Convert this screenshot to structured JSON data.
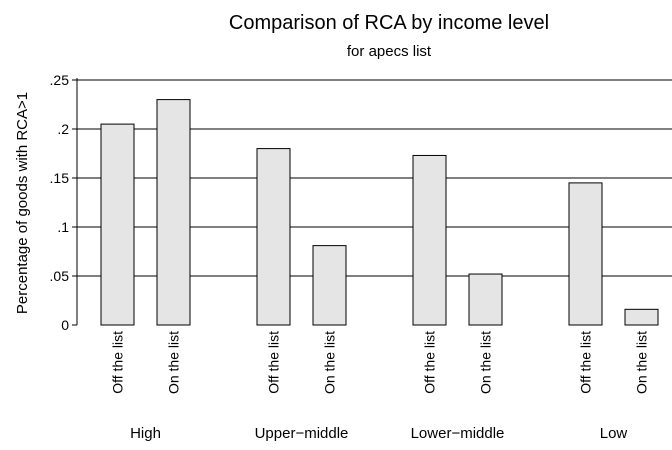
{
  "chart_data": {
    "type": "bar",
    "title": "Comparison of RCA by income level",
    "subtitle": "for apecs list",
    "ylabel": "Percentage of goods with RCA>1",
    "xlabel": "",
    "ylim": [
      0,
      0.25
    ],
    "yticks": [
      0,
      0.05,
      0.1,
      0.15,
      0.2,
      0.25
    ],
    "ytick_labels": [
      "0",
      ".05",
      ".1",
      ".15",
      ".2",
      ".25"
    ],
    "grid": "horizontal",
    "groups": [
      {
        "name": "High",
        "bars": [
          {
            "label": "Off the list",
            "value": 0.205
          },
          {
            "label": "On the list",
            "value": 0.23
          }
        ]
      },
      {
        "name": "Upper−middle",
        "bars": [
          {
            "label": "Off the list",
            "value": 0.18
          },
          {
            "label": "On the list",
            "value": 0.081
          }
        ]
      },
      {
        "name": "Lower−middle",
        "bars": [
          {
            "label": "Off the list",
            "value": 0.173
          },
          {
            "label": "On the list",
            "value": 0.052
          }
        ]
      },
      {
        "name": "Low",
        "bars": [
          {
            "label": "Off the list",
            "value": 0.145
          },
          {
            "label": "On the list",
            "value": 0.016
          }
        ]
      }
    ],
    "colors": {
      "bar_fill": "#e5e5e5",
      "bar_stroke": "#000000",
      "grid": "#000000"
    }
  }
}
